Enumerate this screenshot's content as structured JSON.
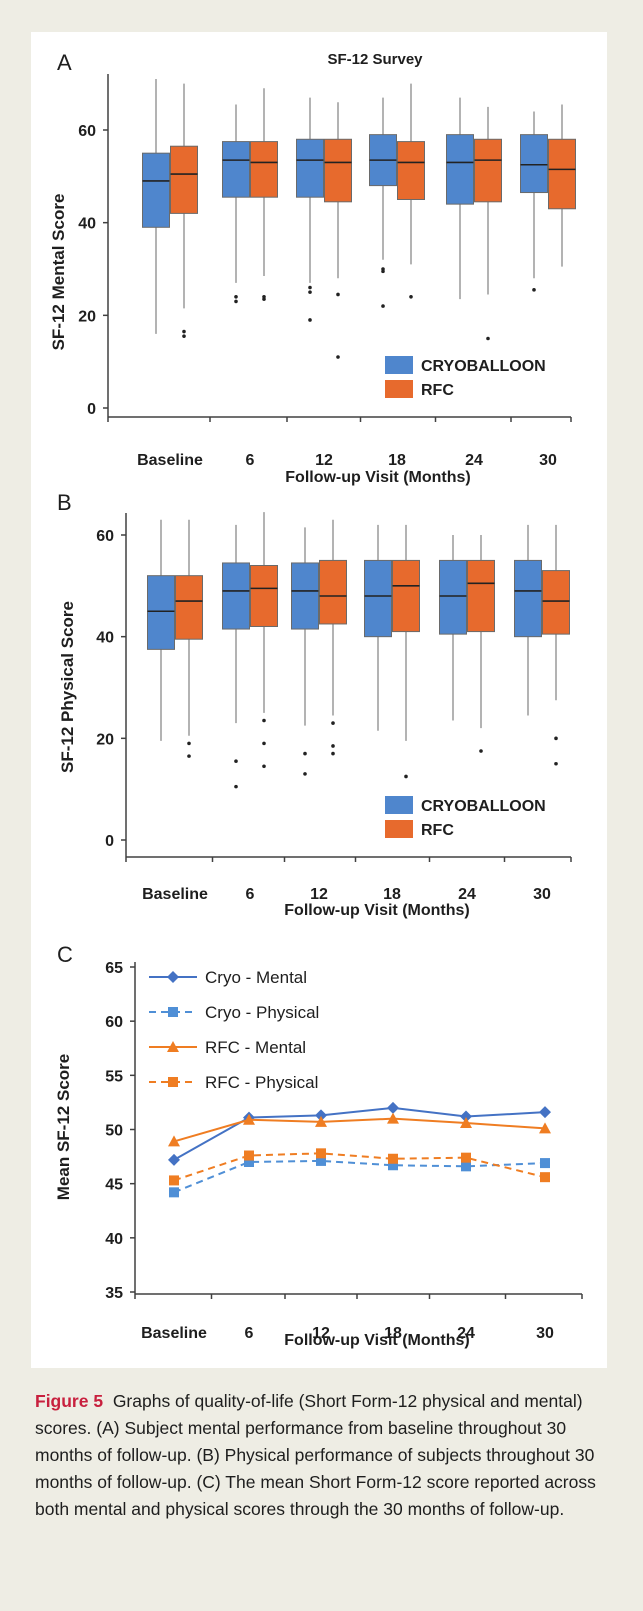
{
  "chart_data": [
    {
      "type": "boxplot",
      "panel_label": "A",
      "title": "SF-12 Survey",
      "xlabel": "Follow-up Visit (Months)",
      "ylabel": "SF-12 Mental Score",
      "categories": [
        "Baseline",
        "6",
        "12",
        "18",
        "24",
        "30"
      ],
      "ylim": [
        0,
        70
      ],
      "yticks": [
        "60",
        "40",
        "20",
        "0"
      ],
      "legend": [
        {
          "name": "CRYOBALLOON",
          "color": "#4f86cd"
        },
        {
          "name": "RFC",
          "color": "#e76a2d"
        }
      ],
      "series": [
        {
          "name": "CRYOBALLOON",
          "color": "#4f86cd",
          "boxes": [
            {
              "whisker_low": 16,
              "q1": 39,
              "median": 49,
              "q3": 55,
              "whisker_high": 71,
              "outliers": []
            },
            {
              "whisker_low": 27,
              "q1": 45.5,
              "median": 53.5,
              "q3": 57.5,
              "whisker_high": 65.5,
              "outliers": [
                23,
                24
              ]
            },
            {
              "whisker_low": 27,
              "q1": 45.5,
              "median": 53.5,
              "q3": 58,
              "whisker_high": 67,
              "outliers": [
                19,
                25,
                26
              ]
            },
            {
              "whisker_low": 32,
              "q1": 48,
              "median": 53.5,
              "q3": 59,
              "whisker_high": 67,
              "outliers": [
                22,
                29.5,
                30
              ]
            },
            {
              "whisker_low": 23.5,
              "q1": 44,
              "median": 53,
              "q3": 59,
              "whisker_high": 67,
              "outliers": []
            },
            {
              "whisker_low": 28,
              "q1": 46.5,
              "median": 52.5,
              "q3": 59,
              "whisker_high": 64,
              "outliers": [
                25.5
              ]
            }
          ]
        },
        {
          "name": "RFC",
          "color": "#e76a2d",
          "boxes": [
            {
              "whisker_low": 21.5,
              "q1": 42,
              "median": 50.5,
              "q3": 56.5,
              "whisker_high": 70,
              "outliers": [
                15.5,
                16.5
              ]
            },
            {
              "whisker_low": 28.5,
              "q1": 45.5,
              "median": 53,
              "q3": 57.5,
              "whisker_high": 69,
              "outliers": [
                23.5,
                24
              ]
            },
            {
              "whisker_low": 28,
              "q1": 44.5,
              "median": 53,
              "q3": 58,
              "whisker_high": 66,
              "outliers": [
                11,
                24.5
              ]
            },
            {
              "whisker_low": 31,
              "q1": 45,
              "median": 53,
              "q3": 57.5,
              "whisker_high": 70,
              "outliers": [
                24
              ]
            },
            {
              "whisker_low": 24.5,
              "q1": 44.5,
              "median": 53.5,
              "q3": 58,
              "whisker_high": 65,
              "outliers": [
                15
              ]
            },
            {
              "whisker_low": 30.5,
              "q1": 43,
              "median": 51.5,
              "q3": 58,
              "whisker_high": 65.5,
              "outliers": []
            }
          ]
        }
      ]
    },
    {
      "type": "boxplot",
      "panel_label": "B",
      "title": "",
      "xlabel": "Follow-up Visit (Months)",
      "ylabel": "SF-12 Physical Score",
      "categories": [
        "Baseline",
        "6",
        "12",
        "18",
        "24",
        "30"
      ],
      "ylim": [
        0,
        64
      ],
      "yticks": [
        "60",
        "40",
        "20",
        "0"
      ],
      "legend": [
        {
          "name": "CRYOBALLOON",
          "color": "#4f86cd"
        },
        {
          "name": "RFC",
          "color": "#e76a2d"
        }
      ],
      "series": [
        {
          "name": "CRYOBALLOON",
          "color": "#4f86cd",
          "boxes": [
            {
              "whisker_low": 19.5,
              "q1": 37.5,
              "median": 45,
              "q3": 52,
              "whisker_high": 63,
              "outliers": []
            },
            {
              "whisker_low": 23,
              "q1": 41.5,
              "median": 49,
              "q3": 54.5,
              "whisker_high": 62,
              "outliers": [
                10.5,
                15.5
              ]
            },
            {
              "whisker_low": 22.5,
              "q1": 41.5,
              "median": 49,
              "q3": 54.5,
              "whisker_high": 61.5,
              "outliers": [
                13,
                17
              ]
            },
            {
              "whisker_low": 21.5,
              "q1": 40,
              "median": 48,
              "q3": 55,
              "whisker_high": 62,
              "outliers": []
            },
            {
              "whisker_low": 23.5,
              "q1": 40.5,
              "median": 48,
              "q3": 55,
              "whisker_high": 60,
              "outliers": []
            },
            {
              "whisker_low": 24.5,
              "q1": 40,
              "median": 49,
              "q3": 55,
              "whisker_high": 62,
              "outliers": []
            }
          ]
        },
        {
          "name": "RFC",
          "color": "#e76a2d",
          "boxes": [
            {
              "whisker_low": 20.5,
              "q1": 39.5,
              "median": 47,
              "q3": 52,
              "whisker_high": 63,
              "outliers": [
                16.5,
                19
              ]
            },
            {
              "whisker_low": 25,
              "q1": 42,
              "median": 49.5,
              "q3": 54,
              "whisker_high": 64.5,
              "outliers": [
                14.5,
                19,
                23.5
              ]
            },
            {
              "whisker_low": 24.5,
              "q1": 42.5,
              "median": 48,
              "q3": 55,
              "whisker_high": 63,
              "outliers": [
                17,
                18.5,
                23
              ]
            },
            {
              "whisker_low": 19.5,
              "q1": 41,
              "median": 50,
              "q3": 55,
              "whisker_high": 62,
              "outliers": [
                12.5
              ]
            },
            {
              "whisker_low": 22,
              "q1": 41,
              "median": 50.5,
              "q3": 55,
              "whisker_high": 60,
              "outliers": [
                17.5
              ]
            },
            {
              "whisker_low": 27.5,
              "q1": 40.5,
              "median": 47,
              "q3": 53,
              "whisker_high": 62,
              "outliers": [
                15,
                20
              ]
            }
          ]
        }
      ]
    },
    {
      "type": "line",
      "panel_label": "C",
      "title": "",
      "xlabel": "Follow-up Visit (Months)",
      "ylabel": "Mean SF-12 Score",
      "categories": [
        "Baseline",
        "6",
        "12",
        "18",
        "24",
        "30"
      ],
      "ylim": [
        35,
        65
      ],
      "yticks": [
        "65",
        "60",
        "55",
        "50",
        "45",
        "40",
        "35"
      ],
      "legend_position": "top-left",
      "series": [
        {
          "name": "Cryo - Mental",
          "color": "#4472c4",
          "dashed": false,
          "marker": "diamond",
          "values": [
            47.2,
            51.1,
            51.3,
            52.0,
            51.2,
            51.6
          ]
        },
        {
          "name": "Cryo - Physical",
          "color": "#4f8fd6",
          "dashed": true,
          "marker": "square",
          "values": [
            44.2,
            47.0,
            47.1,
            46.7,
            46.6,
            46.9
          ]
        },
        {
          "name": "RFC - Mental",
          "color": "#ef7d22",
          "dashed": false,
          "marker": "triangle",
          "values": [
            48.9,
            50.9,
            50.7,
            51.0,
            50.6,
            50.1
          ]
        },
        {
          "name": "RFC - Physical",
          "color": "#ef7d22",
          "dashed": true,
          "marker": "square",
          "values": [
            45.3,
            47.6,
            47.8,
            47.3,
            47.4,
            45.6
          ]
        }
      ]
    }
  ],
  "caption": {
    "figure_label": "Figure 5",
    "text": "Graphs of quality-of-life (Short Form-12 physical and mental) scores. (A) Subject mental performance from baseline throughout 30 months of follow-up. (B) Physical performance of subjects throughout 30 months of follow-up. (C) The mean Short Form-12 score reported across both mental and physical scores through the 30 months of follow-up."
  }
}
